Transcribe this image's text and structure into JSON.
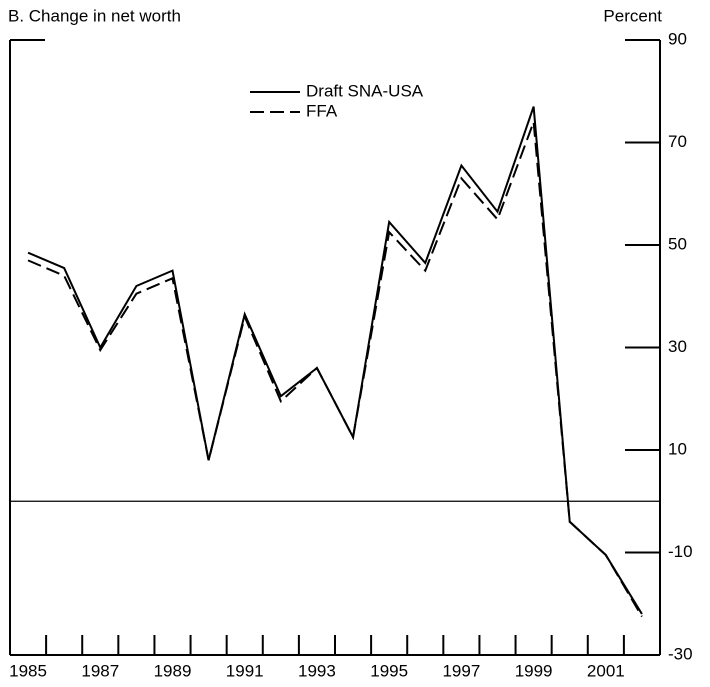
{
  "chart_data": {
    "type": "line",
    "title": "B. Change in net worth",
    "y_axis_label": "Percent",
    "categories": [
      "1985",
      null,
      "1987",
      null,
      "1989",
      null,
      "1991",
      null,
      "1993",
      null,
      "1995",
      null,
      "1997",
      null,
      "1999",
      null,
      "2001",
      null
    ],
    "series": [
      {
        "name": "Draft SNA-USA",
        "color": "#000000",
        "dash": "solid",
        "values": [
          48.5,
          45.5,
          30,
          42,
          45,
          8,
          36.5,
          20.5,
          26,
          12.5,
          54.5,
          46.5,
          65.5,
          56.5,
          77,
          -4,
          -10.5,
          -22
        ]
      },
      {
        "name": "FFA",
        "color": "#000000",
        "dash": "dashed",
        "values": [
          47,
          44,
          29.5,
          40.5,
          43.5,
          8,
          36,
          19.5,
          26,
          12.5,
          52.5,
          45,
          63,
          55,
          74,
          -4,
          -10.5,
          -22.5
        ]
      }
    ],
    "ylim": [
      -30,
      90
    ],
    "yticks": [
      -30,
      -10,
      10,
      30,
      50,
      70,
      90
    ],
    "y_axis_side": "right",
    "grid": false
  }
}
